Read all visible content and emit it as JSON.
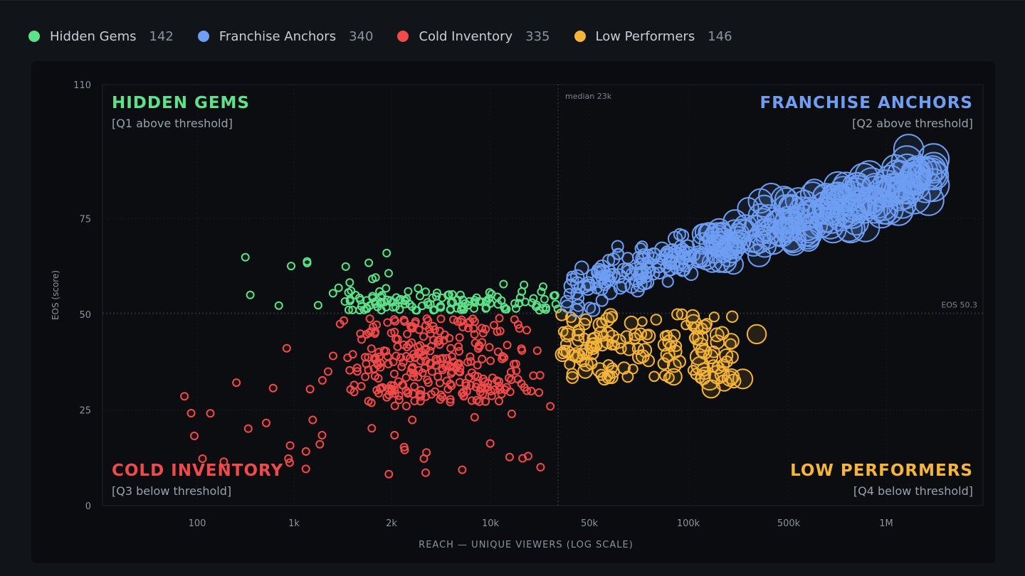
{
  "legend": [
    {
      "label": "Hidden Gems",
      "count": "142",
      "color": "#5fe08a"
    },
    {
      "label": "Franchise Anchors",
      "count": "340",
      "color": "#6f9ef2"
    },
    {
      "label": "Cold Inventory",
      "count": "335",
      "color": "#f04a4a"
    },
    {
      "label": "Low Performers",
      "count": "146",
      "color": "#f5b43a"
    }
  ],
  "chart_data": {
    "type": "scatter",
    "title": "",
    "xlabel": "REACH — UNIQUE VIEWERS (LOG SCALE)",
    "ylabel": "EOS (score)",
    "x_scale": "log",
    "x_ticks": [
      "100",
      "1k",
      "2k",
      "10k",
      "50k",
      "100k",
      "500k",
      "1M"
    ],
    "y_ticks": [
      0,
      25,
      50,
      75,
      110
    ],
    "ylim": [
      0,
      110
    ],
    "grid": true,
    "reference_lines": {
      "vertical_label": "median 23k",
      "horizontal_label": "EOS 50.3"
    },
    "quadrants": [
      {
        "key": "hidden",
        "title": "HIDDEN GEMS",
        "subtitle": "[Q1 above threshold]",
        "color": "#5fe08a",
        "position": "top-left"
      },
      {
        "key": "anchors",
        "title": "FRANCHISE ANCHORS",
        "subtitle": "[Q2 above threshold]",
        "color": "#6f9ef2",
        "position": "top-right"
      },
      {
        "key": "cold",
        "title": "COLD INVENTORY",
        "subtitle": "[Q3 below threshold]",
        "color": "#f04a4a",
        "position": "bottom-left"
      },
      {
        "key": "low",
        "title": "LOW PERFORMERS",
        "subtitle": "[Q4 below threshold]",
        "color": "#f5b43a",
        "position": "bottom-right"
      }
    ],
    "series": [
      {
        "name": "Hidden Gems",
        "color": "#5fe08a",
        "count": 142
      },
      {
        "name": "Franchise Anchors",
        "color": "#6f9ef2",
        "count": 340
      },
      {
        "name": "Cold Inventory",
        "color": "#f04a4a",
        "count": 335
      },
      {
        "name": "Low Performers",
        "color": "#f5b43a",
        "count": 146
      }
    ]
  }
}
